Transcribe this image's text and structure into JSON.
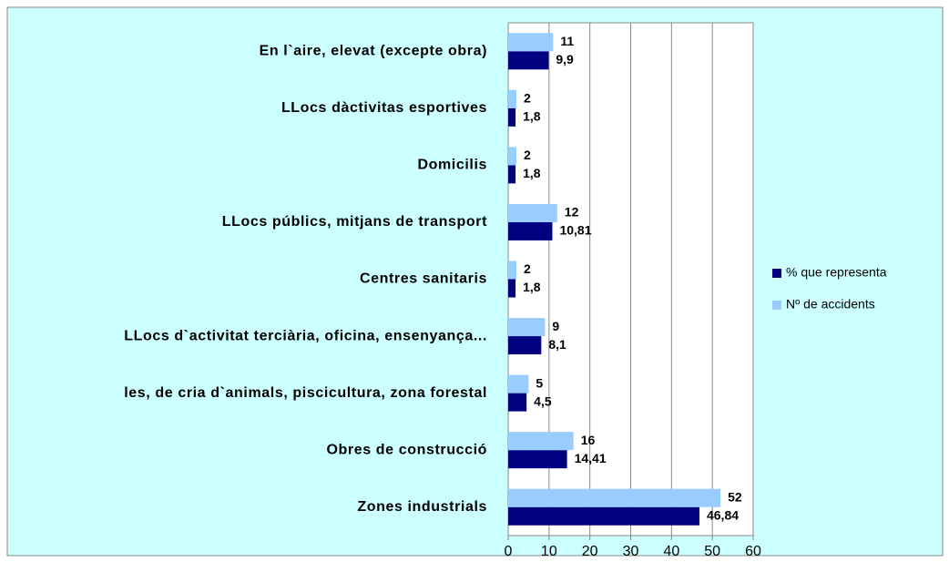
{
  "chart_data": {
    "type": "bar",
    "orientation": "horizontal",
    "categories": [
      "En l`aire, elevat (excepte obra)",
      "LLocs dàctivitas esportives",
      "Domicilis",
      "LLocs públics, mitjans de transport",
      "Centres sanitaris",
      "LLocs d`activitat terciària, oficina, ensenyança...",
      "les, de cria d`animals, piscicultura, zona forestal",
      "Obres de construcció",
      "Zones industrials"
    ],
    "series": [
      {
        "name": "% que representa",
        "color": "#000080",
        "values": [
          9.9,
          1.8,
          1.8,
          10.81,
          1.8,
          8.1,
          4.5,
          14.41,
          46.84
        ],
        "value_labels": [
          "9,9",
          "1,8",
          "1,8",
          "10,81",
          "1,8",
          "8,1",
          "4,5",
          "14,41",
          "46,84"
        ]
      },
      {
        "name": "Nº de accidents",
        "color": "#99ccff",
        "values": [
          11,
          2,
          2,
          12,
          2,
          9,
          5,
          16,
          52
        ]
      }
    ],
    "xlim": [
      0,
      60
    ],
    "xticks": [
      0,
      10,
      20,
      30,
      40,
      50,
      60
    ],
    "grid": true,
    "legend": "right"
  }
}
